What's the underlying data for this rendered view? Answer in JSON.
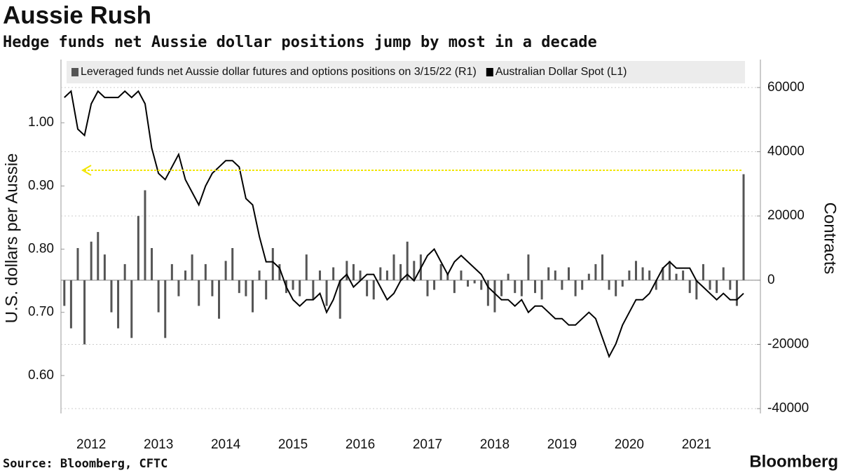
{
  "chart_data": {
    "type": "bar_line",
    "title": "Aussie Rush",
    "subtitle": "Hedge funds net Aussie dollar positions jump by most in a decade",
    "ylabel": "U.S. dollars per Aussie",
    "y2label": "Contracts",
    "source": "Source: Bloomberg, CFTC",
    "brand": "Bloomberg",
    "xlim": [
      2012.05,
      2022.45
    ],
    "xticks": [
      {
        "value": 2012.5,
        "label": "2012"
      },
      {
        "value": 2013.5,
        "label": "2013"
      },
      {
        "value": 2014.5,
        "label": "2014"
      },
      {
        "value": 2015.5,
        "label": "2015"
      },
      {
        "value": 2016.5,
        "label": "2016"
      },
      {
        "value": 2017.5,
        "label": "2017"
      },
      {
        "value": 2018.5,
        "label": "2018"
      },
      {
        "value": 2019.5,
        "label": "2019"
      },
      {
        "value": 2020.5,
        "label": "2020"
      },
      {
        "value": 2021.5,
        "label": "2021"
      }
    ],
    "ylim": [
      0.54,
      1.1
    ],
    "yticks": [
      {
        "value": 0.6,
        "label": "0.60"
      },
      {
        "value": 0.7,
        "label": "0.70"
      },
      {
        "value": 0.8,
        "label": "0.80"
      },
      {
        "value": 0.9,
        "label": "0.90"
      },
      {
        "value": 1.0,
        "label": "1.00"
      }
    ],
    "y2lim": [
      -41500,
      68700
    ],
    "y2ticks": [
      -40000,
      -20000,
      0,
      20000,
      40000,
      60000
    ],
    "grid": true,
    "x": [
      2012.1,
      2012.2,
      2012.3,
      2012.4,
      2012.5,
      2012.6,
      2012.7,
      2012.8,
      2012.9,
      2013.0,
      2013.1,
      2013.2,
      2013.3,
      2013.4,
      2013.5,
      2013.6,
      2013.7,
      2013.8,
      2013.9,
      2014.0,
      2014.1,
      2014.2,
      2014.3,
      2014.4,
      2014.5,
      2014.6,
      2014.7,
      2014.8,
      2014.9,
      2015.0,
      2015.1,
      2015.2,
      2015.3,
      2015.4,
      2015.5,
      2015.6,
      2015.7,
      2015.8,
      2015.9,
      2016.0,
      2016.1,
      2016.2,
      2016.3,
      2016.4,
      2016.5,
      2016.6,
      2016.7,
      2016.8,
      2016.9,
      2017.0,
      2017.1,
      2017.2,
      2017.3,
      2017.4,
      2017.5,
      2017.6,
      2017.7,
      2017.8,
      2017.9,
      2018.0,
      2018.1,
      2018.2,
      2018.3,
      2018.4,
      2018.5,
      2018.6,
      2018.7,
      2018.8,
      2018.9,
      2019.0,
      2019.1,
      2019.2,
      2019.3,
      2019.4,
      2019.5,
      2019.6,
      2019.7,
      2019.8,
      2019.9,
      2020.0,
      2020.1,
      2020.2,
      2020.3,
      2020.4,
      2020.5,
      2020.6,
      2020.7,
      2020.8,
      2020.9,
      2021.0,
      2021.1,
      2021.2,
      2021.3,
      2021.4,
      2021.5,
      2021.6,
      2021.7,
      2021.8,
      2021.9,
      2022.0,
      2022.1,
      2022.2
    ],
    "series": [
      {
        "name": "Leveraged funds net Aussie dollar futures and options positions on 3/15/22 (R1)",
        "color": "#555555",
        "axis": "y2",
        "kind": "bar",
        "values": [
          -8000,
          -15000,
          10000,
          -20000,
          12000,
          15000,
          8000,
          -10000,
          -15000,
          5000,
          -18000,
          20000,
          28000,
          10000,
          -10000,
          -18000,
          5000,
          -5000,
          3000,
          8000,
          -8000,
          5000,
          -5000,
          -12000,
          6000,
          10000,
          -4000,
          -5000,
          -10000,
          3000,
          -6000,
          10000,
          5000,
          -4000,
          -3000,
          -5000,
          8000,
          -6000,
          3000,
          -8000,
          4000,
          -12000,
          6000,
          5000,
          3000,
          -5000,
          -6000,
          4000,
          3000,
          8000,
          5000,
          12000,
          6000,
          8000,
          -5000,
          -3000,
          5000,
          2000,
          -4000,
          3000,
          -2000,
          -1000,
          -3000,
          -8000,
          -10000,
          -5000,
          2000,
          -4000,
          -5000,
          8000,
          -4000,
          -6000,
          4000,
          3000,
          -3000,
          4000,
          -5000,
          -3000,
          2000,
          5000,
          8000,
          -3000,
          -5000,
          -2000,
          3000,
          6000,
          4000,
          3000,
          -3000,
          4000,
          6000,
          2000,
          3000,
          -4000,
          -6000,
          5000,
          -3000,
          -4000,
          4000,
          -3000,
          -8000,
          33000
        ]
      },
      {
        "name": "Australian Dollar Spot  (L1)",
        "color": "#000000",
        "axis": "y",
        "kind": "line",
        "values": [
          1.04,
          1.05,
          0.99,
          0.98,
          1.03,
          1.05,
          1.04,
          1.04,
          1.04,
          1.05,
          1.04,
          1.05,
          1.03,
          0.96,
          0.92,
          0.91,
          0.93,
          0.95,
          0.91,
          0.89,
          0.87,
          0.9,
          0.92,
          0.93,
          0.94,
          0.94,
          0.93,
          0.88,
          0.87,
          0.82,
          0.78,
          0.78,
          0.77,
          0.74,
          0.72,
          0.71,
          0.72,
          0.72,
          0.73,
          0.7,
          0.72,
          0.75,
          0.76,
          0.74,
          0.75,
          0.76,
          0.76,
          0.74,
          0.72,
          0.73,
          0.75,
          0.76,
          0.75,
          0.77,
          0.79,
          0.8,
          0.78,
          0.76,
          0.78,
          0.79,
          0.78,
          0.77,
          0.76,
          0.74,
          0.73,
          0.72,
          0.72,
          0.71,
          0.72,
          0.7,
          0.71,
          0.71,
          0.7,
          0.69,
          0.69,
          0.68,
          0.68,
          0.69,
          0.7,
          0.69,
          0.66,
          0.63,
          0.65,
          0.68,
          0.7,
          0.72,
          0.72,
          0.73,
          0.75,
          0.77,
          0.78,
          0.77,
          0.77,
          0.77,
          0.75,
          0.74,
          0.73,
          0.72,
          0.73,
          0.72,
          0.72,
          0.73
        ]
      }
    ]
  }
}
